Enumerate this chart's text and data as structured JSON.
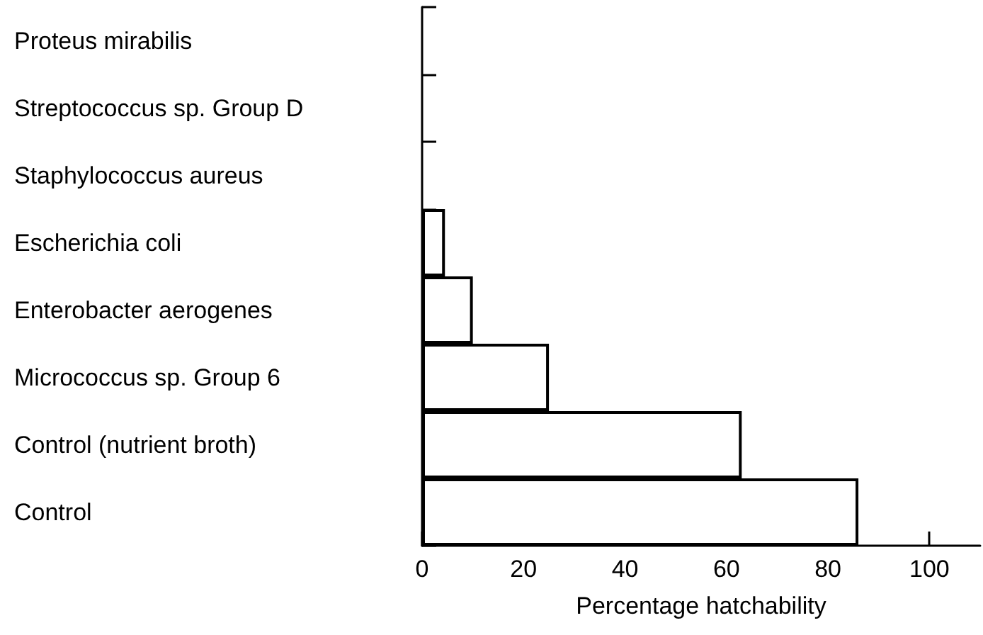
{
  "chart_data": {
    "type": "bar",
    "orientation": "horizontal",
    "xlabel": "Percentage hatchability",
    "categories": [
      "Proteus mirabilis",
      "Streptococcus sp. Group D",
      "Staphylococcus aureus",
      "Escherichia coli",
      "Enterobacter aerogenes",
      "Micrococcus sp. Group 6",
      "Control (nutrient broth)",
      "Control"
    ],
    "values": [
      0,
      0,
      0,
      4.5,
      10,
      25,
      63,
      86
    ],
    "color": "#ffffff",
    "xlim": [
      0,
      110
    ],
    "xticks": [
      0,
      20,
      40,
      60,
      80,
      100
    ],
    "grid": false
  }
}
